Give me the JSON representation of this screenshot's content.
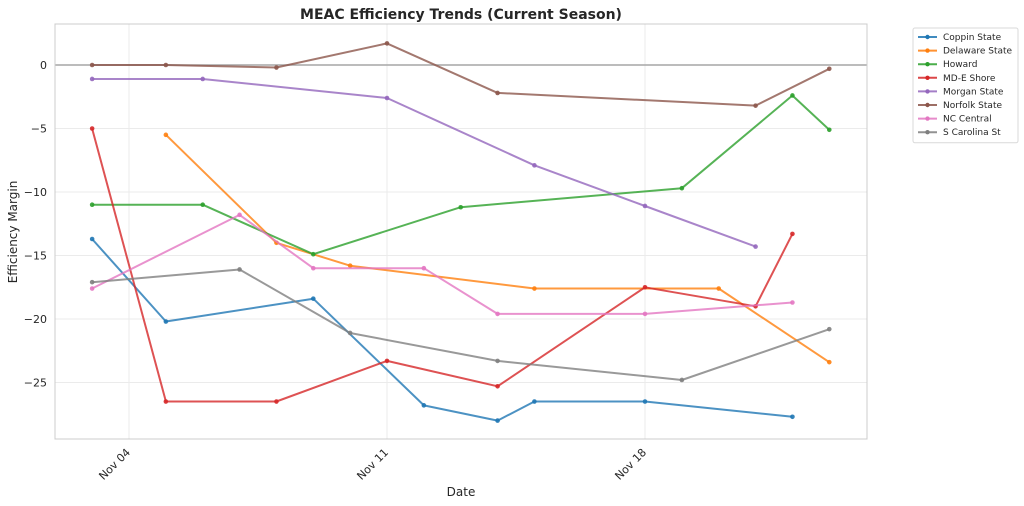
{
  "chart_data": {
    "type": "line",
    "title": "MEAC Efficiency Trends (Current Season)",
    "xlabel": "Date",
    "ylabel": "Efficiency Margin",
    "x_range": [
      "Nov 02",
      "Nov 24"
    ],
    "ylim": [
      -29.5,
      3.2
    ],
    "yticks": [
      0,
      -5,
      -10,
      -15,
      -20,
      -25
    ],
    "ytick_labels": [
      "0",
      "−5",
      "−10",
      "−15",
      "−20",
      "−25"
    ],
    "xticks": [
      {
        "day": 4,
        "label": "Nov 04"
      },
      {
        "day": 11,
        "label": "Nov 11"
      },
      {
        "day": 18,
        "label": "Nov 18"
      }
    ],
    "grid": true,
    "reference_line": 0,
    "legend_position": "outside-top-right",
    "series": [
      {
        "name": "Coppin State",
        "color": "#1f77b4",
        "points": [
          [
            3,
            -13.7
          ],
          [
            5,
            -20.2
          ],
          [
            9,
            -18.4
          ],
          [
            12,
            -26.8
          ],
          [
            14,
            -28.0
          ],
          [
            15,
            -26.5
          ],
          [
            18,
            -26.5
          ],
          [
            22,
            -27.7
          ]
        ]
      },
      {
        "name": "Delaware State",
        "color": "#ff7f0e",
        "points": [
          [
            5,
            -5.5
          ],
          [
            8,
            -14.0
          ],
          [
            10,
            -15.8
          ],
          [
            15,
            -17.6
          ],
          [
            20,
            -17.6
          ],
          [
            23,
            -23.4
          ]
        ]
      },
      {
        "name": "Howard",
        "color": "#2ca02c",
        "points": [
          [
            3,
            -11.0
          ],
          [
            6,
            -11.0
          ],
          [
            9,
            -14.9
          ],
          [
            13,
            -11.2
          ],
          [
            19,
            -9.7
          ],
          [
            22,
            -2.4
          ],
          [
            23,
            -5.1
          ]
        ]
      },
      {
        "name": "MD-E Shore",
        "color": "#d62728",
        "points": [
          [
            3,
            -5.0
          ],
          [
            5,
            -26.5
          ],
          [
            8,
            -26.5
          ],
          [
            11,
            -23.3
          ],
          [
            14,
            -25.3
          ],
          [
            18,
            -17.5
          ],
          [
            21,
            -19.0
          ],
          [
            22,
            -13.3
          ]
        ]
      },
      {
        "name": "Morgan State",
        "color": "#9467bd",
        "points": [
          [
            3,
            -1.1
          ],
          [
            6,
            -1.1
          ],
          [
            11,
            -2.6
          ],
          [
            15,
            -7.9
          ],
          [
            18,
            -11.1
          ],
          [
            21,
            -14.3
          ]
        ]
      },
      {
        "name": "Norfolk State",
        "color": "#8c564b",
        "points": [
          [
            3,
            0.0
          ],
          [
            5,
            0.0
          ],
          [
            8,
            -0.2
          ],
          [
            11,
            1.7
          ],
          [
            14,
            -2.2
          ],
          [
            21,
            -3.2
          ],
          [
            23,
            -0.3
          ]
        ]
      },
      {
        "name": "NC Central",
        "color": "#e377c2",
        "points": [
          [
            3,
            -17.6
          ],
          [
            7,
            -11.8
          ],
          [
            9,
            -16.0
          ],
          [
            12,
            -16.0
          ],
          [
            14,
            -19.6
          ],
          [
            18,
            -19.6
          ],
          [
            22,
            -18.7
          ]
        ]
      },
      {
        "name": "S Carolina St",
        "color": "#7f7f7f",
        "points": [
          [
            3,
            -17.1
          ],
          [
            7,
            -16.1
          ],
          [
            10,
            -21.1
          ],
          [
            14,
            -23.3
          ],
          [
            19,
            -24.8
          ],
          [
            23,
            -20.8
          ]
        ]
      }
    ]
  }
}
